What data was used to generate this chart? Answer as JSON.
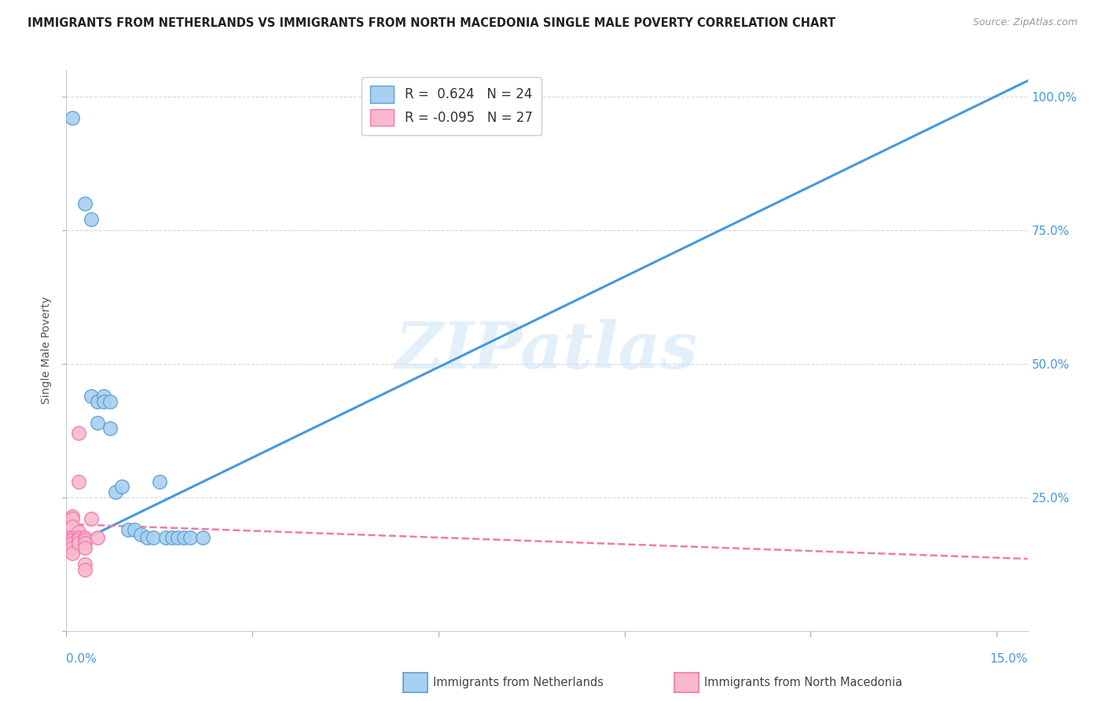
{
  "title": "IMMIGRANTS FROM NETHERLANDS VS IMMIGRANTS FROM NORTH MACEDONIA SINGLE MALE POVERTY CORRELATION CHART",
  "source": "Source: ZipAtlas.com",
  "ylabel": "Single Male Poverty",
  "y_ticks": [
    0.0,
    0.25,
    0.5,
    0.75,
    1.0
  ],
  "y_tick_labels_right": [
    "",
    "25.0%",
    "50.0%",
    "75.0%",
    "100.0%"
  ],
  "x_ticks": [
    0.0,
    0.03,
    0.06,
    0.09,
    0.12,
    0.15
  ],
  "xlim": [
    0.0,
    0.155
  ],
  "ylim": [
    0.0,
    1.05
  ],
  "legend_R1": "R =  0.624",
  "legend_N1": "N = 24",
  "legend_R2": "R = -0.095",
  "legend_N2": "N = 27",
  "watermark": "ZIPatlas",
  "netherlands_color": "#a8d0f0",
  "north_macedonia_color": "#f9b8cd",
  "netherlands_edge_color": "#5b9fd4",
  "north_macedonia_edge_color": "#f07aaa",
  "netherlands_line_color": "#4499dd",
  "north_macedonia_line_color": "#f07aaa",
  "netherlands_scatter": [
    [
      0.001,
      0.96
    ],
    [
      0.003,
      0.8
    ],
    [
      0.004,
      0.77
    ],
    [
      0.004,
      0.44
    ],
    [
      0.005,
      0.43
    ],
    [
      0.005,
      0.39
    ],
    [
      0.006,
      0.44
    ],
    [
      0.006,
      0.43
    ],
    [
      0.007,
      0.43
    ],
    [
      0.007,
      0.38
    ],
    [
      0.008,
      0.26
    ],
    [
      0.009,
      0.27
    ],
    [
      0.01,
      0.19
    ],
    [
      0.011,
      0.19
    ],
    [
      0.012,
      0.18
    ],
    [
      0.013,
      0.175
    ],
    [
      0.014,
      0.175
    ],
    [
      0.015,
      0.28
    ],
    [
      0.016,
      0.175
    ],
    [
      0.017,
      0.175
    ],
    [
      0.018,
      0.175
    ],
    [
      0.019,
      0.175
    ],
    [
      0.02,
      0.175
    ],
    [
      0.022,
      0.175
    ]
  ],
  "north_macedonia_scatter": [
    [
      0.0,
      0.175
    ],
    [
      0.0,
      0.165
    ],
    [
      0.0,
      0.155
    ],
    [
      0.001,
      0.215
    ],
    [
      0.001,
      0.21
    ],
    [
      0.001,
      0.195
    ],
    [
      0.001,
      0.175
    ],
    [
      0.001,
      0.175
    ],
    [
      0.001,
      0.17
    ],
    [
      0.001,
      0.165
    ],
    [
      0.001,
      0.155
    ],
    [
      0.001,
      0.145
    ],
    [
      0.002,
      0.37
    ],
    [
      0.002,
      0.28
    ],
    [
      0.002,
      0.185
    ],
    [
      0.002,
      0.175
    ],
    [
      0.002,
      0.175
    ],
    [
      0.002,
      0.17
    ],
    [
      0.002,
      0.165
    ],
    [
      0.003,
      0.175
    ],
    [
      0.003,
      0.17
    ],
    [
      0.003,
      0.165
    ],
    [
      0.003,
      0.155
    ],
    [
      0.003,
      0.125
    ],
    [
      0.003,
      0.115
    ],
    [
      0.004,
      0.21
    ],
    [
      0.005,
      0.175
    ]
  ],
  "netherlands_line_x": [
    0.0,
    0.155
  ],
  "netherlands_line_y": [
    0.155,
    1.03
  ],
  "north_macedonia_line_x": [
    0.0,
    0.155
  ],
  "north_macedonia_line_y": [
    0.2,
    0.135
  ]
}
